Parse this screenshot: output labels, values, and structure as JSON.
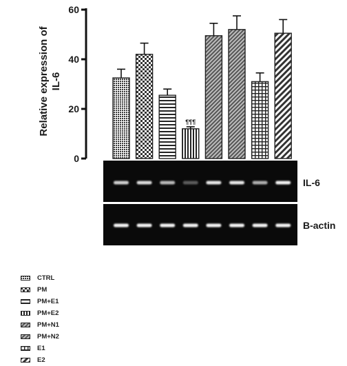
{
  "chart_data": {
    "type": "bar",
    "ylabel": "Relative expression of IL-6",
    "ylabel_lines": [
      "Relative expression of",
      "IL-6"
    ],
    "ylim": [
      0,
      60
    ],
    "yticks": [
      "0",
      "20",
      "40",
      "60"
    ],
    "grid": false,
    "legend_position": "bottom-left",
    "categories": [
      "CTRL",
      "PM",
      "PM+E1",
      "PM+E2",
      "PM+N1",
      "PM+N2",
      "E1",
      "E2"
    ],
    "values": [
      32.5,
      42,
      25.5,
      12,
      49.5,
      52,
      31,
      50.5
    ],
    "errors": [
      3.5,
      4.5,
      2.5,
      0.8,
      5,
      5.5,
      3.5,
      5.5
    ],
    "patterns": [
      "dots",
      "checker",
      "hstripes",
      "vstripes",
      "diag-dense",
      "diag-dense",
      "grid",
      "diag-wide"
    ],
    "annotations": [
      {
        "category": "PM+E2",
        "text": "¶¶¶"
      }
    ],
    "blots": [
      {
        "label": "IL-6",
        "band_intensity": [
          0.85,
          0.9,
          0.75,
          0.35,
          0.95,
          0.95,
          0.7,
          1.0
        ]
      },
      {
        "label": "B-actin",
        "band_intensity": [
          1.0,
          1.0,
          1.0,
          1.0,
          1.0,
          1.0,
          1.0,
          1.0
        ]
      }
    ]
  },
  "legend": {
    "items": [
      {
        "label": "CTRL",
        "pattern": "dots"
      },
      {
        "label": "PM",
        "pattern": "checker"
      },
      {
        "label": "PM+E1",
        "pattern": "hstripes"
      },
      {
        "label": "PM+E2",
        "pattern": "vstripes"
      },
      {
        "label": "PM+N1",
        "pattern": "diag-dense"
      },
      {
        "label": "PM+N2",
        "pattern": "diag-dense"
      },
      {
        "label": "E1",
        "pattern": "grid"
      },
      {
        "label": "E2",
        "pattern": "diag-wide"
      }
    ]
  },
  "colors": {
    "bar_stroke": "#222222",
    "blot_background": "#0a0a0a",
    "band": "#f4f4f4",
    "axis": "#111111"
  }
}
